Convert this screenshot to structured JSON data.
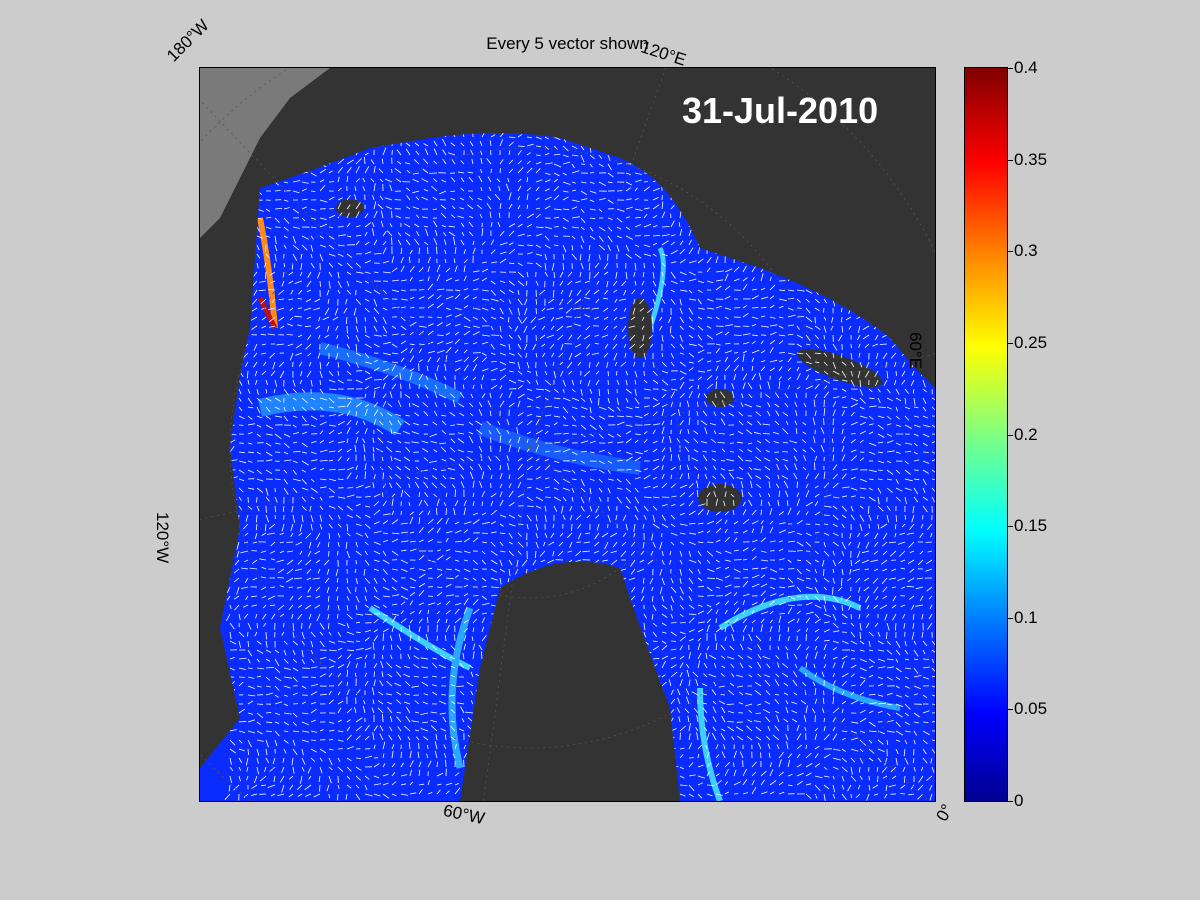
{
  "figure": {
    "title": "Every 5 vector shown",
    "date": "31-Jul-2010",
    "map_labels": {
      "lon_180w": "180°W",
      "lon_120e": "120°E",
      "lon_60e": "60°E",
      "lon_120w": "120°W",
      "lon_60w": "60°W",
      "lon_0": "0°"
    },
    "colors": {
      "background": "#cccccc",
      "land": "#333333",
      "ocean_low": "#0000ff",
      "ocean_mid": "#0a3cff",
      "vector": "#ffffff"
    }
  },
  "colorbar": {
    "min": 0,
    "max": 0.4,
    "ticks": [
      "0",
      "0.05",
      "0.1",
      "0.15",
      "0.2",
      "0.25",
      "0.3",
      "0.35",
      "0.4"
    ],
    "colormap": "jet"
  }
}
